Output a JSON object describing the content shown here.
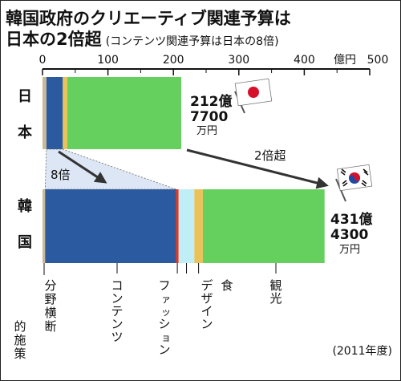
{
  "title_line1": "韓国政府のクリエーティブ関連予算は",
  "title_line2_main": "日本の2倍超",
  "title_line2_note": "(コンテンツ関連予算は日本の8倍)",
  "axis": {
    "unit": "億円",
    "ticks": [
      "0",
      "100",
      "200",
      "300",
      "400",
      "500"
    ]
  },
  "country_labels": {
    "japan": "日本",
    "korea": "韓国"
  },
  "totals": {
    "japan": [
      "212億",
      "7700",
      "万円"
    ],
    "korea": [
      "431億",
      "4300",
      "万円"
    ]
  },
  "arrows": {
    "content_ratio": "8倍",
    "total_ratio": "2倍超"
  },
  "category_labels": [
    "分野横断的施策",
    "コンテンツ",
    "ファッション",
    "デザイン",
    "食",
    "観光"
  ],
  "footnote": "(2011年度)",
  "colors": {
    "cross_sector": "#c8b99a",
    "contents": "#2b5aa0",
    "fashion": "#e8361e",
    "design": "#bfeef7",
    "food": "#e9c25a",
    "tourism": "#66d05e"
  },
  "chart_data": {
    "type": "bar",
    "orientation": "horizontal",
    "stacked": true,
    "unit": "億円",
    "xlim": [
      0,
      500
    ],
    "categories": [
      "日本",
      "韓国"
    ],
    "series": [
      {
        "name": "分野横断的施策",
        "values": [
          6,
          4
        ]
      },
      {
        "name": "コンテンツ",
        "values": [
          25,
          200
        ]
      },
      {
        "name": "ファッション",
        "values": [
          0,
          4
        ]
      },
      {
        "name": "デザイン",
        "values": [
          0,
          24
        ]
      },
      {
        "name": "食",
        "values": [
          7,
          13
        ]
      },
      {
        "name": "観光",
        "values": [
          174,
          186
        ]
      }
    ],
    "totals": [
      212.77,
      431.43
    ],
    "year": "2011年度"
  }
}
